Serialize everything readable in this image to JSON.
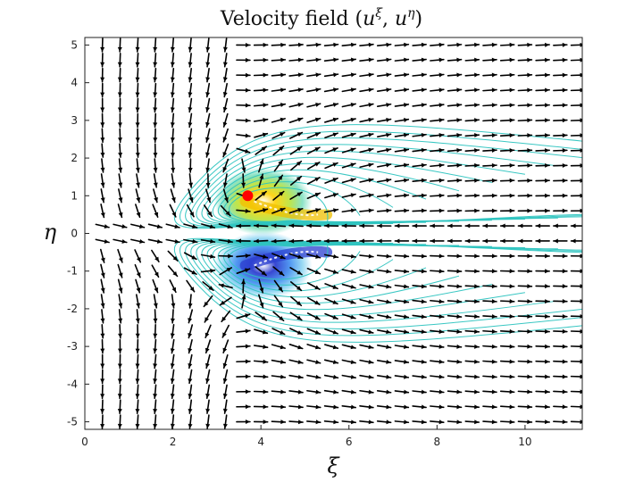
{
  "chart_data": {
    "type": "quiver",
    "title": "Velocity field (ũ^ξ, ũ^η)",
    "title_parts": {
      "prefix": "Velocity field (",
      "comp1_base": "u",
      "comp1_sup": "ξ",
      "separator": ", ",
      "comp2_base": "u",
      "comp2_sup": "η",
      "suffix": ")"
    },
    "xlabel": "ξ",
    "ylabel": "η",
    "xlim": [
      0,
      11.3
    ],
    "ylim": [
      -5.2,
      5.2
    ],
    "xticks": [
      0,
      2,
      4,
      6,
      8,
      10
    ],
    "yticks": [
      -5,
      -4,
      -3,
      -2,
      -1,
      0,
      1,
      2,
      3,
      4,
      5
    ],
    "grid": false,
    "arrow_grid": {
      "x_start": 0.4,
      "x_step": 0.4,
      "x_count": 28,
      "y_start": -5.0,
      "y_step": 0.4,
      "y_count": 26
    },
    "vortices": [
      {
        "x": 3.7,
        "y": 1.0,
        "sign": 1,
        "color": "#f2c200"
      },
      {
        "x": 3.7,
        "y": -1.0,
        "sign": -1,
        "color": "#2b3fd0"
      }
    ],
    "marker": {
      "x": 3.7,
      "y": 1.0,
      "color": "#ff0000"
    },
    "colors": {
      "contour": "#2ec4c0",
      "arrow": "#000000",
      "positive_core": "#f2c200",
      "negative_core": "#2b3fd0"
    }
  }
}
